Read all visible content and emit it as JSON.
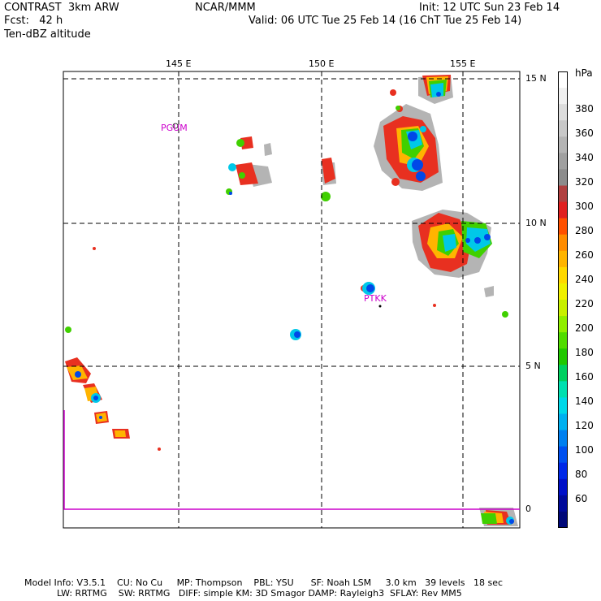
{
  "header": {
    "model": "CONTRAST  3km ARW",
    "forecast": "Fcst:   42 h",
    "field": "Ten-dBZ altitude",
    "institution": "NCAR/MMM",
    "init": "Init: 12 UTC Sun 23 Feb 14",
    "valid": "Valid: 06 UTC Tue 25 Feb 14 (16 ChT Tue 25 Feb 14)"
  },
  "map": {
    "lon_labels": [
      "145 E",
      "150 E",
      "155 E"
    ],
    "lat_labels": [
      "15 N",
      "10 N",
      "5 N",
      "0"
    ],
    "stations": [
      {
        "id": "PGUM",
        "color": "#cc00cc"
      },
      {
        "id": "PTKK",
        "color": "#cc00cc"
      }
    ]
  },
  "colorbar": {
    "unit": "hPa",
    "tick_labels": [
      "380",
      "360",
      "340",
      "320",
      "300",
      "280",
      "260",
      "240",
      "220",
      "200",
      "180",
      "160",
      "140",
      "120",
      "100",
      "80",
      "60"
    ],
    "colors": [
      "#ffffff",
      "#f0f0f0",
      "#dcdcdc",
      "#c8c8c8",
      "#b4b4b4",
      "#a0a0a0",
      "#8c8c8c",
      "#b04040",
      "#e02020",
      "#ff5000",
      "#ff8c00",
      "#ffb400",
      "#ffd800",
      "#f0f000",
      "#c8f000",
      "#90ee00",
      "#50dc00",
      "#20c800",
      "#00d060",
      "#00e0b0",
      "#00d8e8",
      "#00b0f0",
      "#0080f0",
      "#0050f0",
      "#0028e8",
      "#0010c8",
      "#000a9a",
      "#000878"
    ]
  },
  "footer": {
    "line1": "Model Info: V3.5.1    CU: No Cu     MP: Thompson    PBL: YSU      SF: Noah LSM     3.0 km   39 levels   18 sec",
    "line2": "LW: RRTMG    SW: RRTMG   DIFF: simple KM: 3D Smagor DAMP: Rayleigh3  SFLAY: Rev MM5"
  }
}
